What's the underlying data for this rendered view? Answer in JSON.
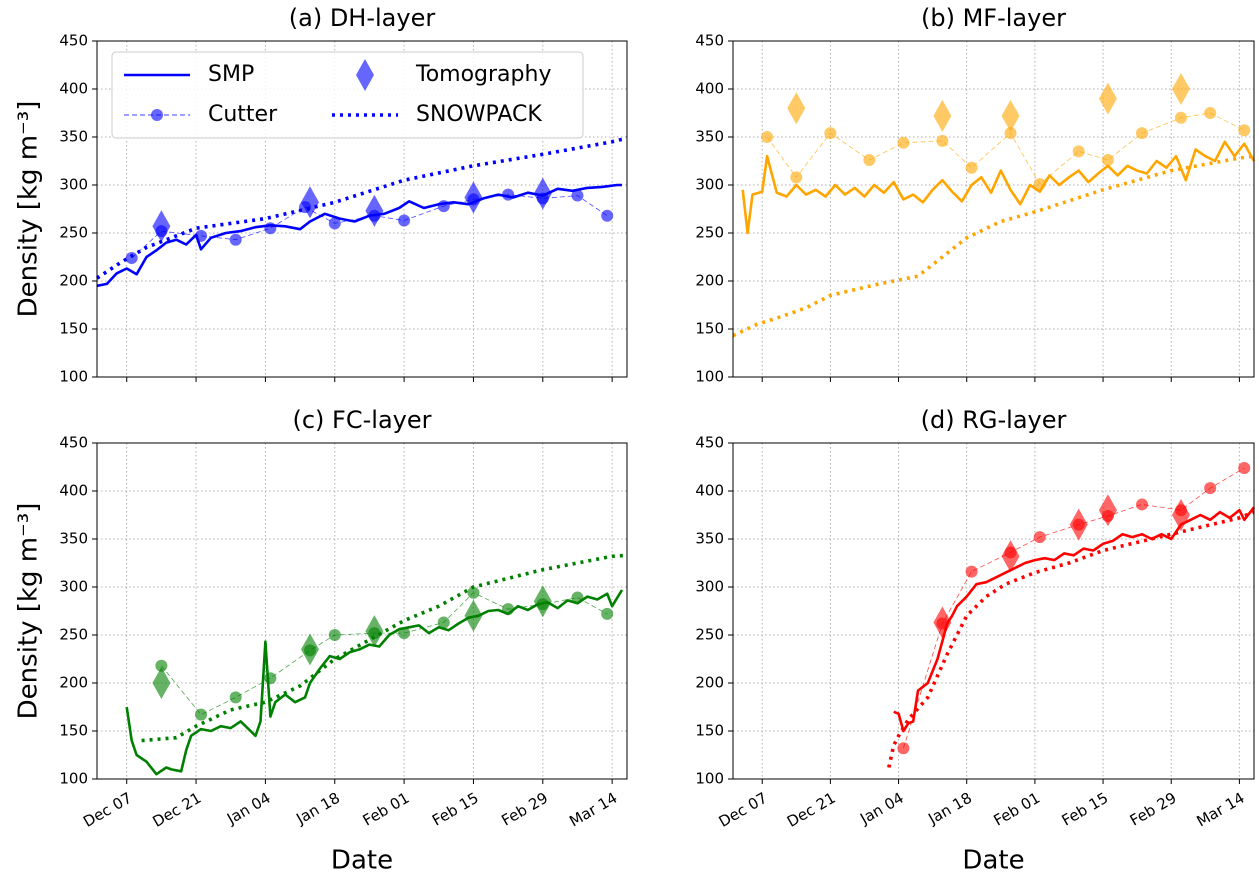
{
  "chart_data": [
    {
      "type": "line",
      "title": "(a) DH-layer",
      "ylabel": "Density [kg m⁻³]",
      "xlim": [
        "Dec 01",
        "Mar 17"
      ],
      "xticks": [
        "Dec 07",
        "Dec 21",
        "Jan 04",
        "Jan 18",
        "Feb 01",
        "Feb 15",
        "Feb 29",
        "Mar 14"
      ],
      "xtick_labels": false,
      "ylim": [
        100,
        450
      ],
      "yticks": [
        100,
        150,
        200,
        250,
        300,
        350,
        400,
        450
      ],
      "grid": true,
      "legend": "upper left",
      "legend_columns": 2,
      "series": [
        {
          "name": "SMP",
          "color": "#0000ff",
          "linestyle": "solid",
          "marker": "none",
          "x": [
            "Dec 01",
            "Dec 03",
            "Dec 05",
            "Dec 07",
            "Dec 09",
            "Dec 11",
            "Dec 13",
            "Dec 15",
            "Dec 17",
            "Dec 19",
            "Dec 21",
            "Dec 22",
            "Dec 24",
            "Dec 27",
            "Dec 30",
            "Jan 02",
            "Jan 05",
            "Jan 08",
            "Jan 11",
            "Jan 13",
            "Jan 16",
            "Jan 19",
            "Jan 22",
            "Jan 25",
            "Jan 28",
            "Jan 31",
            "Feb 02",
            "Feb 05",
            "Feb 08",
            "Feb 11",
            "Feb 14",
            "Feb 17",
            "Feb 20",
            "Feb 23",
            "Feb 26",
            "Feb 29",
            "Mar 03",
            "Mar 06",
            "Mar 09",
            "Mar 12",
            "Mar 15",
            "Mar 16"
          ],
          "values": [
            195,
            197,
            208,
            213,
            207,
            225,
            232,
            240,
            243,
            238,
            248,
            233,
            245,
            250,
            252,
            256,
            258,
            257,
            254,
            262,
            270,
            265,
            262,
            268,
            270,
            276,
            283,
            276,
            280,
            282,
            280,
            286,
            290,
            287,
            292,
            289,
            296,
            294,
            297,
            298,
            300,
            300
          ]
        },
        {
          "name": "Cutter",
          "color": "#0000ff",
          "linestyle": "dashed",
          "marker": "circle",
          "x": [
            "Dec 08",
            "Dec 14",
            "Dec 22",
            "Dec 29",
            "Jan 05",
            "Jan 12",
            "Jan 18",
            "Jan 26",
            "Feb 01",
            "Feb 09",
            "Feb 15",
            "Feb 22",
            "Feb 29",
            "Mar 07",
            "Mar 13"
          ],
          "values": [
            224,
            252,
            247,
            243,
            255,
            277,
            260,
            268,
            263,
            278,
            285,
            290,
            286,
            289,
            268
          ]
        },
        {
          "name": "Tomography",
          "color": "#0000ff",
          "linestyle": "none",
          "marker": "diamond",
          "x": [
            "Dec 14",
            "Jan 13",
            "Jan 26",
            "Feb 15",
            "Feb 29"
          ],
          "values": [
            257,
            282,
            273,
            287,
            291
          ]
        },
        {
          "name": "SNOWPACK",
          "color": "#0000ff",
          "linestyle": "dotted",
          "marker": "none",
          "x": [
            "Dec 01",
            "Dec 06",
            "Dec 11",
            "Dec 21",
            "Jan 04",
            "Jan 18",
            "Feb 01",
            "Feb 15",
            "Feb 29",
            "Mar 14",
            "Mar 17"
          ],
          "values": [
            203,
            220,
            235,
            255,
            265,
            282,
            305,
            320,
            332,
            345,
            349
          ]
        }
      ]
    },
    {
      "type": "line",
      "title": "(b) MF-layer",
      "xlim": [
        "Dec 01",
        "Mar 17"
      ],
      "xticks": [
        "Dec 07",
        "Dec 21",
        "Jan 04",
        "Jan 18",
        "Feb 01",
        "Feb 15",
        "Feb 29",
        "Mar 14"
      ],
      "xtick_labels": false,
      "ylim": [
        100,
        450
      ],
      "yticks": [
        100,
        150,
        200,
        250,
        300,
        350,
        400,
        450
      ],
      "grid": true,
      "series": [
        {
          "color": "#ffa500",
          "linestyle": "solid",
          "marker": "none",
          "x": [
            "Dec 03",
            "Dec 04",
            "Dec 05",
            "Dec 07",
            "Dec 08",
            "Dec 10",
            "Dec 12",
            "Dec 14",
            "Dec 16",
            "Dec 18",
            "Dec 20",
            "Dec 22",
            "Dec 24",
            "Dec 26",
            "Dec 28",
            "Dec 30",
            "Jan 01",
            "Jan 03",
            "Jan 05",
            "Jan 07",
            "Jan 09",
            "Jan 11",
            "Jan 13",
            "Jan 15",
            "Jan 17",
            "Jan 19",
            "Jan 21",
            "Jan 23",
            "Jan 25",
            "Jan 27",
            "Jan 29",
            "Jan 31",
            "Feb 02",
            "Feb 04",
            "Feb 06",
            "Feb 08",
            "Feb 10",
            "Feb 12",
            "Feb 14",
            "Feb 16",
            "Feb 18",
            "Feb 20",
            "Feb 22",
            "Feb 24",
            "Feb 26",
            "Feb 28",
            "Mar 01",
            "Mar 03",
            "Mar 05",
            "Mar 07",
            "Mar 09",
            "Mar 11",
            "Mar 13",
            "Mar 15",
            "Mar 17"
          ],
          "values": [
            295,
            250,
            290,
            293,
            330,
            292,
            288,
            300,
            290,
            295,
            288,
            300,
            290,
            297,
            288,
            300,
            292,
            303,
            285,
            290,
            282,
            295,
            305,
            293,
            283,
            300,
            308,
            292,
            315,
            295,
            280,
            300,
            293,
            310,
            300,
            308,
            315,
            303,
            312,
            320,
            310,
            320,
            315,
            312,
            325,
            318,
            330,
            305,
            337,
            330,
            325,
            345,
            330,
            343,
            325
          ]
        },
        {
          "color": "#ffa500",
          "linestyle": "dashed",
          "marker": "circle",
          "x": [
            "Dec 08",
            "Dec 14",
            "Dec 21",
            "Dec 29",
            "Jan 05",
            "Jan 13",
            "Jan 19",
            "Jan 27",
            "Feb 02",
            "Feb 10",
            "Feb 16",
            "Feb 23",
            "Mar 02",
            "Mar 08",
            "Mar 15"
          ],
          "values": [
            350,
            308,
            354,
            326,
            344,
            346,
            318,
            354,
            301,
            335,
            326,
            354,
            370,
            375,
            357
          ]
        },
        {
          "color": "#ffa500",
          "linestyle": "none",
          "marker": "diamond",
          "x": [
            "Dec 14",
            "Jan 13",
            "Jan 27",
            "Feb 16",
            "Mar 02"
          ],
          "values": [
            380,
            372,
            372,
            390,
            400
          ]
        },
        {
          "color": "#ffa500",
          "linestyle": "dotted",
          "marker": "none",
          "x": [
            "Dec 01",
            "Dec 06",
            "Dec 11",
            "Dec 16",
            "Dec 21",
            "Dec 31",
            "Jan 08",
            "Jan 18",
            "Jan 25",
            "Feb 01",
            "Feb 15",
            "Feb 29",
            "Mar 14",
            "Mar 17"
          ],
          "values": [
            143,
            155,
            163,
            172,
            185,
            197,
            205,
            245,
            262,
            272,
            295,
            315,
            328,
            330
          ]
        }
      ]
    },
    {
      "type": "line",
      "title": "(c) FC-layer",
      "xlabel": "Date",
      "ylabel": "Density [kg m⁻³]",
      "xlim": [
        "Dec 01",
        "Mar 17"
      ],
      "xticks": [
        "Dec 07",
        "Dec 21",
        "Jan 04",
        "Jan 18",
        "Feb 01",
        "Feb 15",
        "Feb 29",
        "Mar 14"
      ],
      "xtick_labels": true,
      "ylim": [
        100,
        450
      ],
      "yticks": [
        100,
        150,
        200,
        250,
        300,
        350,
        400,
        450
      ],
      "grid": true,
      "series": [
        {
          "color": "#008000",
          "linestyle": "solid",
          "marker": "none",
          "x": [
            "Dec 07",
            "Dec 08",
            "Dec 09",
            "Dec 11",
            "Dec 13",
            "Dec 15",
            "Dec 16",
            "Dec 18",
            "Dec 19",
            "Dec 20",
            "Dec 22",
            "Dec 24",
            "Dec 26",
            "Dec 28",
            "Dec 30",
            "Dec 31",
            "Jan 02",
            "Jan 03",
            "Jan 04",
            "Jan 05",
            "Jan 06",
            "Jan 08",
            "Jan 10",
            "Jan 12",
            "Jan 13",
            "Jan 15",
            "Jan 17",
            "Jan 19",
            "Jan 21",
            "Jan 23",
            "Jan 25",
            "Jan 27",
            "Jan 29",
            "Jan 31",
            "Feb 02",
            "Feb 04",
            "Feb 06",
            "Feb 08",
            "Feb 10",
            "Feb 12",
            "Feb 14",
            "Feb 16",
            "Feb 18",
            "Feb 20",
            "Feb 22",
            "Feb 24",
            "Feb 26",
            "Feb 28",
            "Mar 01",
            "Mar 03",
            "Mar 05",
            "Mar 07",
            "Mar 09",
            "Mar 11",
            "Mar 13",
            "Mar 14",
            "Mar 16"
          ],
          "values": [
            175,
            140,
            125,
            118,
            105,
            112,
            110,
            108,
            130,
            145,
            152,
            150,
            155,
            153,
            160,
            155,
            145,
            160,
            243,
            165,
            180,
            188,
            180,
            185,
            200,
            215,
            228,
            225,
            232,
            235,
            240,
            238,
            250,
            256,
            258,
            260,
            252,
            258,
            255,
            262,
            268,
            270,
            275,
            276,
            272,
            280,
            276,
            282,
            284,
            278,
            286,
            283,
            290,
            287,
            293,
            280,
            297
          ]
        },
        {
          "color": "#008000",
          "linestyle": "dashed",
          "marker": "circle",
          "x": [
            "Dec 14",
            "Dec 22",
            "Dec 29",
            "Jan 05",
            "Jan 13",
            "Jan 18",
            "Jan 26",
            "Feb 01",
            "Feb 09",
            "Feb 15",
            "Feb 22",
            "Feb 29",
            "Mar 07",
            "Mar 13"
          ],
          "values": [
            218,
            167,
            185,
            205,
            234,
            250,
            252,
            252,
            263,
            294,
            277,
            282,
            289,
            272
          ]
        },
        {
          "color": "#008000",
          "linestyle": "none",
          "marker": "diamond",
          "x": [
            "Dec 14",
            "Jan 13",
            "Jan 26",
            "Feb 15",
            "Feb 29"
          ],
          "values": [
            200,
            235,
            254,
            270,
            285
          ]
        },
        {
          "color": "#008000",
          "linestyle": "dotted",
          "marker": "none",
          "x": [
            "Dec 10",
            "Dec 17",
            "Dec 21",
            "Dec 28",
            "Jan 04",
            "Jan 11",
            "Jan 18",
            "Jan 25",
            "Feb 01",
            "Feb 08",
            "Feb 15",
            "Feb 29",
            "Mar 14",
            "Mar 17"
          ],
          "values": [
            140,
            143,
            155,
            172,
            180,
            197,
            225,
            245,
            265,
            280,
            300,
            318,
            332,
            333
          ]
        }
      ]
    },
    {
      "type": "line",
      "title": "(d) RG-layer",
      "xlabel": "Date",
      "xlim": [
        "Dec 01",
        "Mar 17"
      ],
      "xticks": [
        "Dec 07",
        "Dec 21",
        "Jan 04",
        "Jan 18",
        "Feb 01",
        "Feb 15",
        "Feb 29",
        "Mar 14"
      ],
      "xtick_labels": true,
      "ylim": [
        100,
        450
      ],
      "yticks": [
        100,
        150,
        200,
        250,
        300,
        350,
        400,
        450
      ],
      "grid": true,
      "series": [
        {
          "color": "#ff0000",
          "linestyle": "solid",
          "marker": "none",
          "x": [
            "Jan 03",
            "Jan 04",
            "Jan 05",
            "Jan 06",
            "Jan 07",
            "Jan 08",
            "Jan 10",
            "Jan 12",
            "Jan 14",
            "Jan 15",
            "Jan 16",
            "Jan 18",
            "Jan 20",
            "Jan 22",
            "Jan 24",
            "Jan 26",
            "Jan 28",
            "Jan 30",
            "Feb 01",
            "Feb 03",
            "Feb 05",
            "Feb 07",
            "Feb 09",
            "Feb 11",
            "Feb 13",
            "Feb 15",
            "Feb 17",
            "Feb 19",
            "Feb 21",
            "Feb 23",
            "Feb 25",
            "Feb 27",
            "Feb 29",
            "Mar 02",
            "Mar 04",
            "Mar 06",
            "Mar 08",
            "Mar 10",
            "Mar 12",
            "Mar 14",
            "Mar 15",
            "Mar 17"
          ],
          "values": [
            170,
            168,
            150,
            158,
            160,
            192,
            200,
            225,
            262,
            270,
            280,
            290,
            303,
            305,
            310,
            315,
            320,
            325,
            328,
            330,
            328,
            335,
            333,
            340,
            338,
            345,
            348,
            355,
            352,
            355,
            350,
            355,
            350,
            365,
            370,
            375,
            370,
            378,
            372,
            380,
            370,
            383
          ]
        },
        {
          "color": "#ff0000",
          "linestyle": "dashed",
          "marker": "circle",
          "x": [
            "Jan 05",
            "Jan 13",
            "Jan 19",
            "Jan 27",
            "Feb 02",
            "Feb 10",
            "Feb 16",
            "Feb 23",
            "Mar 02",
            "Mar 08",
            "Mar 15"
          ],
          "values": [
            132,
            262,
            316,
            336,
            352,
            365,
            374,
            386,
            380,
            403,
            424
          ]
        },
        {
          "color": "#ff0000",
          "linestyle": "none",
          "marker": "diamond",
          "x": [
            "Jan 13",
            "Jan 27",
            "Feb 10",
            "Feb 16",
            "Mar 02"
          ],
          "values": [
            263,
            332,
            365,
            380,
            375
          ]
        },
        {
          "color": "#ff0000",
          "linestyle": "dotted",
          "marker": "none",
          "x": [
            "Jan 02",
            "Jan 03",
            "Jan 04",
            "Jan 06",
            "Jan 10",
            "Jan 14",
            "Jan 16",
            "Jan 18",
            "Jan 22",
            "Jan 26",
            "Feb 01",
            "Feb 08",
            "Feb 15",
            "Feb 29",
            "Mar 14",
            "Mar 17"
          ],
          "values": [
            112,
            135,
            145,
            162,
            185,
            230,
            250,
            270,
            290,
            303,
            315,
            325,
            338,
            355,
            372,
            378
          ]
        }
      ]
    }
  ]
}
